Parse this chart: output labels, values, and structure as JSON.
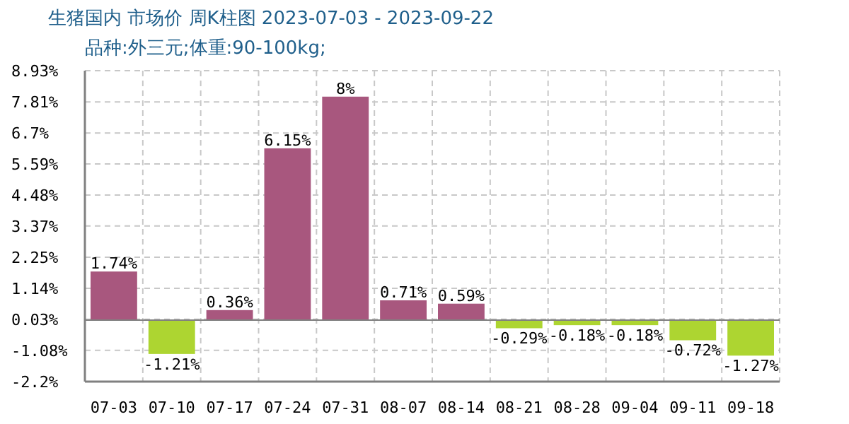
{
  "chart_data": {
    "type": "bar",
    "title": "生猪国内 市场价 周K柱图 2023-07-03 - 2023-09-22",
    "subtitle": "品种:外三元;体重:90-100kg;",
    "categories": [
      "07-03",
      "07-10",
      "07-17",
      "07-24",
      "07-31",
      "08-07",
      "08-14",
      "08-21",
      "08-28",
      "09-04",
      "09-11",
      "09-18"
    ],
    "values": [
      1.74,
      -1.21,
      0.36,
      6.15,
      8,
      0.71,
      0.59,
      -0.29,
      -0.18,
      -0.18,
      -0.72,
      -1.27
    ],
    "colors": [
      "#a8577e",
      "#add531",
      "#a8577e",
      "#a8577e",
      "#a8577e",
      "#a8577e",
      "#a8577e",
      "#add531",
      "#add531",
      "#add531",
      "#add531",
      "#add531"
    ],
    "value_labels": [
      "1.74%",
      "-1.21%",
      "0.36%",
      "6.15%",
      "8%",
      "0.71%",
      "0.59%",
      "-0.29%",
      "-0.18%",
      "-0.18%",
      "-0.72%",
      "-1.27%"
    ],
    "ylim": [
      -2.2,
      8.93
    ],
    "yticks": [
      {
        "value": -2.2,
        "label": "-2.2%"
      },
      {
        "value": -1.08,
        "label": "-1.08%"
      },
      {
        "value": 0.03,
        "label": "0.03%"
      },
      {
        "value": 1.14,
        "label": "1.14%"
      },
      {
        "value": 2.25,
        "label": "2.25%"
      },
      {
        "value": 3.37,
        "label": "3.37%"
      },
      {
        "value": 4.48,
        "label": "4.48%"
      },
      {
        "value": 5.59,
        "label": "5.59%"
      },
      {
        "value": 6.7,
        "label": "6.7%"
      },
      {
        "value": 7.81,
        "label": "7.81%"
      },
      {
        "value": 8.93,
        "label": "8.93%"
      }
    ],
    "grid": true
  }
}
